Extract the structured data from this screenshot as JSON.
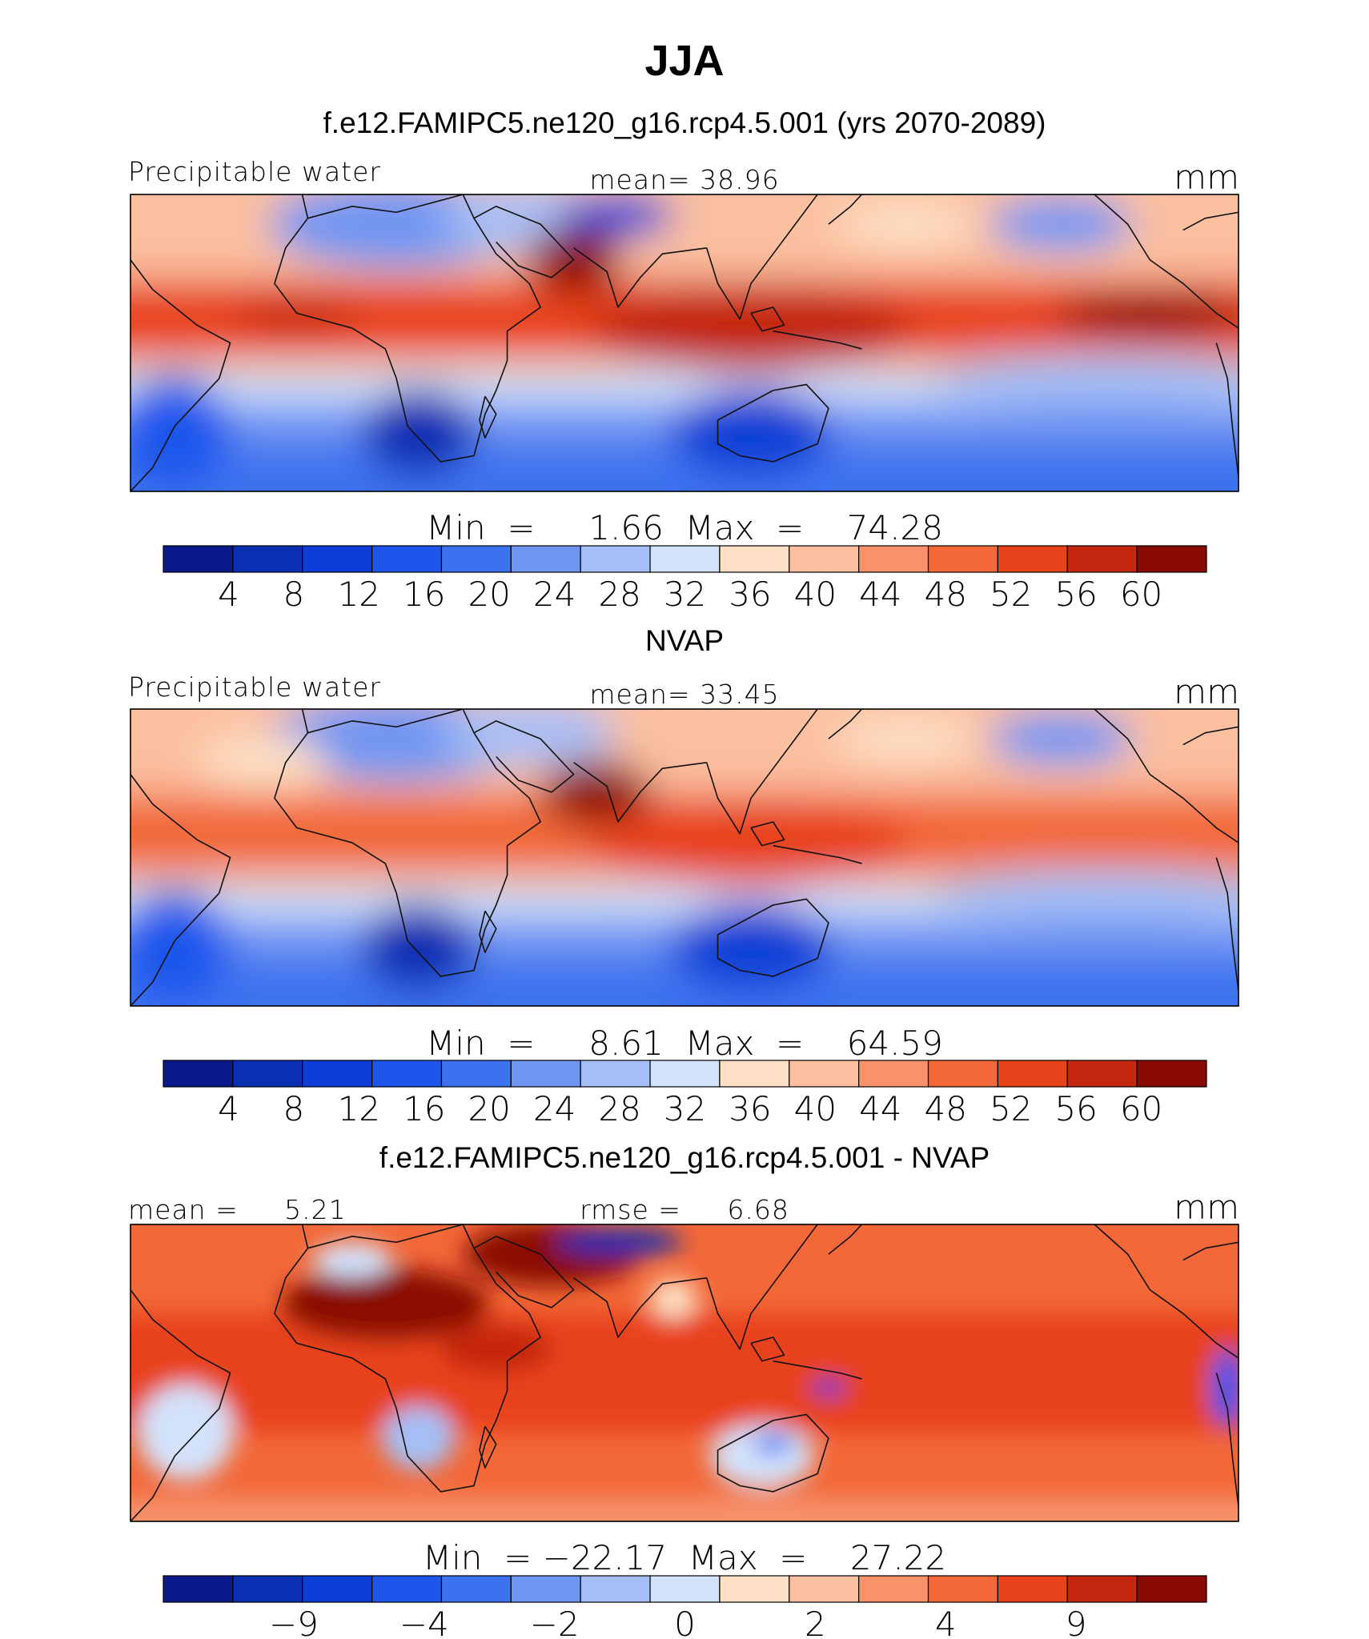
{
  "figure": {
    "title": "JJA"
  },
  "chart_data": [
    {
      "type": "heatmap",
      "heading": "f.e12.FAMIPC5.ne120_g16.rcp4.5.001 (yrs 2070-2089)",
      "left_label": "Precipitable water",
      "center_label": "mean=   38.96",
      "units": "mm",
      "minmax_label": "Min  =     1.66  Max  =    74.28",
      "stats": {
        "mean": 38.96,
        "min": 1.66,
        "max": 74.28
      },
      "colorbar_ticks": [
        "4",
        "8",
        "12",
        "16",
        "20",
        "24",
        "28",
        "32",
        "36",
        "40",
        "44",
        "48",
        "52",
        "56",
        "60"
      ],
      "colorbar_levels": [
        4,
        8,
        12,
        16,
        20,
        24,
        28,
        32,
        36,
        40,
        44,
        48,
        52,
        56,
        60
      ],
      "colors": [
        "#0a1a8c",
        "#0a2fb3",
        "#0d3fd6",
        "#1e56ec",
        "#3c72ef",
        "#6f96f2",
        "#a5bff6",
        "#d3e2fb",
        "#fde0c5",
        "#fbc0a0",
        "#f7926b",
        "#f26838",
        "#e8421a",
        "#c4260f",
        "#8a0b06"
      ],
      "field_scale": 1
    },
    {
      "type": "heatmap",
      "heading": "NVAP",
      "left_label": "Precipitable water",
      "center_label": "mean=   33.45",
      "units": "mm",
      "minmax_label": "Min  =     8.61  Max  =    64.59",
      "stats": {
        "mean": 33.45,
        "min": 8.61,
        "max": 64.59
      },
      "colorbar_ticks": [
        "4",
        "8",
        "12",
        "16",
        "20",
        "24",
        "28",
        "32",
        "36",
        "40",
        "44",
        "48",
        "52",
        "56",
        "60"
      ],
      "colorbar_levels": [
        4,
        8,
        12,
        16,
        20,
        24,
        28,
        32,
        36,
        40,
        44,
        48,
        52,
        56,
        60
      ],
      "colors": [
        "#0a1a8c",
        "#0a2fb3",
        "#0d3fd6",
        "#1e56ec",
        "#3c72ef",
        "#6f96f2",
        "#a5bff6",
        "#d3e2fb",
        "#fde0c5",
        "#fbc0a0",
        "#f7926b",
        "#f26838",
        "#e8421a",
        "#c4260f",
        "#8a0b06"
      ],
      "field_scale": 0.85
    },
    {
      "type": "heatmap",
      "heading": "f.e12.FAMIPC5.ne120_g16.rcp4.5.001 - NVAP",
      "left_label": "mean =     5.21",
      "center_label": "rmse =     6.68",
      "units": "mm",
      "minmax_label": "Min  = −22.17  Max  =    27.22",
      "stats": {
        "mean": 5.21,
        "rmse": 6.68,
        "min": -22.17,
        "max": 27.22
      },
      "colorbar_ticks": [
        "−9",
        "−4",
        "−2",
        "0",
        "2",
        "4",
        "9"
      ],
      "colorbar_levels": [
        -9,
        -4,
        -2,
        0,
        2,
        4,
        9
      ],
      "colors": [
        "#0a1a8c",
        "#0a2fb3",
        "#0d3fd6",
        "#1e56ec",
        "#3c72ef",
        "#6f96f2",
        "#a5bff6",
        "#d3e2fb",
        "#fde0c5",
        "#fbc0a0",
        "#f7926b",
        "#f26838",
        "#e8421a",
        "#c4260f",
        "#8a0b06"
      ],
      "field_scale": 0
    }
  ]
}
